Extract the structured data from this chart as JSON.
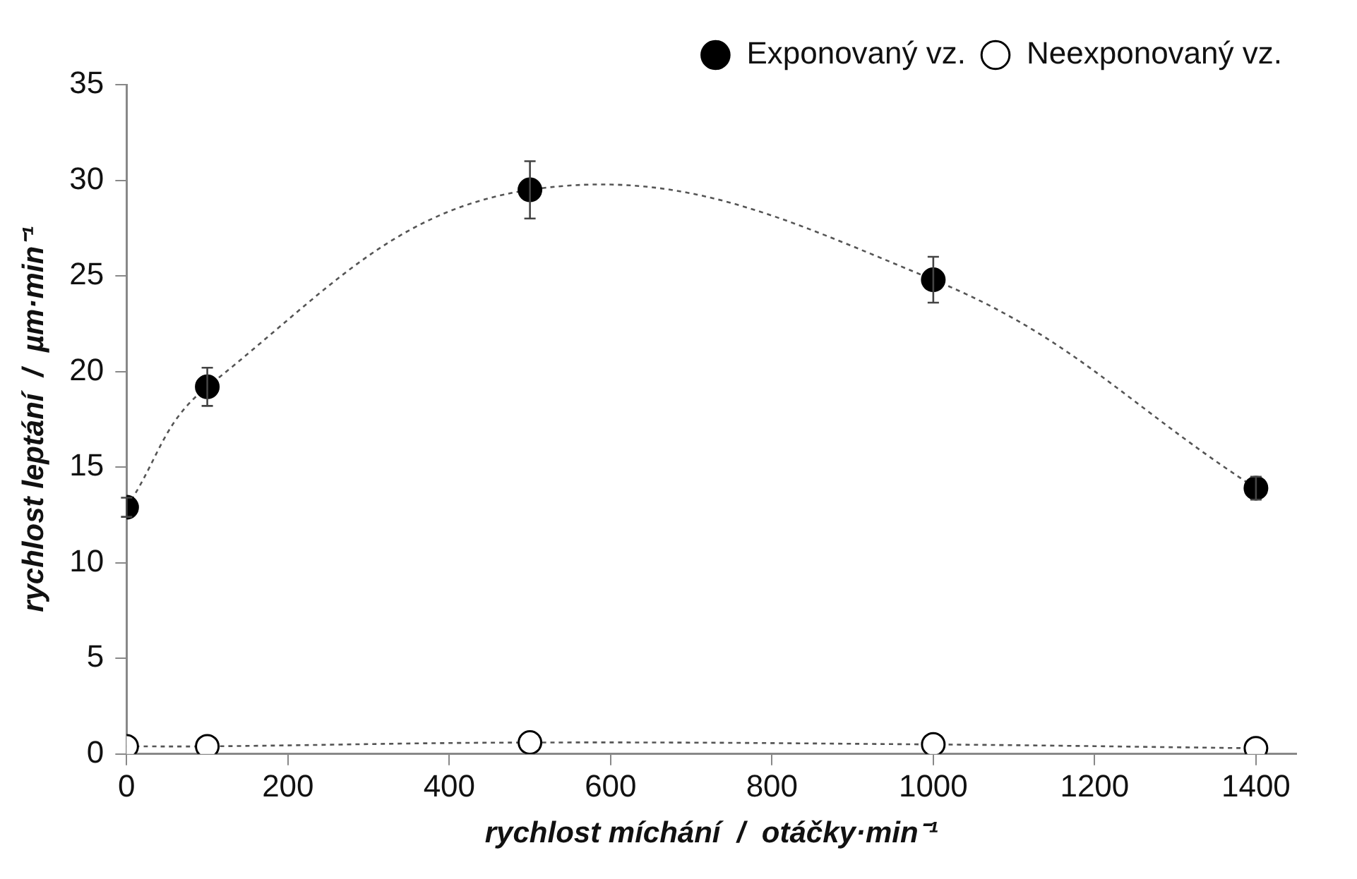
{
  "chart_data": {
    "type": "line",
    "xlabel": "rychlost míchání  /  otáčky·min⁻¹",
    "ylabel": "rychlost leptání  /  µm·min⁻¹",
    "x": [
      0,
      100,
      500,
      1000,
      1400
    ],
    "series": [
      {
        "name": "Exponovaný vz.",
        "color": "#000000",
        "values": [
          12.9,
          19.2,
          29.5,
          24.8,
          13.9
        ],
        "errors": [
          0.5,
          1.0,
          1.5,
          1.2,
          0.6
        ]
      },
      {
        "name": "Neexponovaný vz.",
        "color": "#000000",
        "values": [
          0.4,
          0.4,
          0.6,
          0.5,
          0.3
        ]
      }
    ],
    "xlim": [
      0,
      1450
    ],
    "xticks": [
      0,
      200,
      400,
      600,
      800,
      1000,
      1200,
      1400
    ],
    "ylim": [
      0,
      35
    ],
    "yticks": [
      0,
      5,
      10,
      15,
      20,
      25,
      30,
      35
    ],
    "grid": false,
    "legend": "top right",
    "marker": "circle",
    "line_style": "dotted"
  }
}
